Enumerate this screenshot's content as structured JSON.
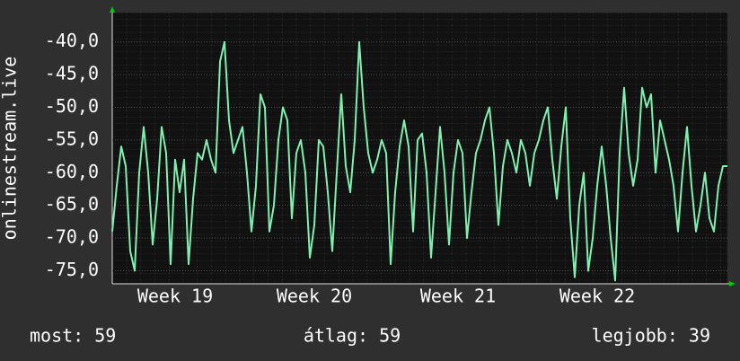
{
  "chart_data": {
    "type": "line",
    "y_label": "onlinestream.live",
    "categories": [
      null,
      null,
      null,
      null,
      null,
      null,
      null,
      null,
      null,
      null,
      null,
      null,
      null,
      null,
      "Week 19",
      null,
      null,
      null,
      null,
      null,
      null,
      null,
      null,
      null,
      null,
      null,
      null,
      null,
      null,
      null,
      null,
      null,
      null,
      null,
      null,
      null,
      null,
      null,
      null,
      null,
      null,
      null,
      null,
      null,
      null,
      "Week 20",
      null,
      null,
      null,
      null,
      null,
      null,
      null,
      null,
      null,
      null,
      null,
      null,
      null,
      null,
      null,
      null,
      null,
      null,
      null,
      null,
      null,
      null,
      null,
      null,
      null,
      null,
      null,
      null,
      null,
      null,
      null,
      "Week 21",
      null,
      null,
      null,
      null,
      null,
      null,
      null,
      null,
      null,
      null,
      null,
      null,
      null,
      null,
      null,
      null,
      null,
      null,
      null,
      null,
      null,
      null,
      null,
      null,
      null,
      null,
      null,
      null,
      null,
      null,
      "Week 22",
      null,
      null,
      null,
      null,
      null,
      null,
      null,
      null,
      null,
      null,
      null,
      null,
      null,
      null,
      null,
      null,
      null,
      null,
      null,
      null,
      null,
      null,
      null,
      null,
      null,
      null,
      null,
      null,
      null
    ],
    "series": [
      {
        "color": "#80f0b0",
        "values": [
          -69,
          -62,
          -56,
          -59,
          -72,
          -75,
          -60,
          -53,
          -60,
          -71,
          -64,
          -53,
          -57,
          -74,
          -58,
          -63,
          -58,
          -74,
          -64,
          -57,
          -58,
          -55,
          -58,
          -60,
          -43,
          -40,
          -52,
          -57,
          -55,
          -53,
          -60,
          -69,
          -62,
          -48,
          -50,
          -69,
          -65,
          -55,
          -50,
          -52,
          -67,
          -57,
          -55,
          -60,
          -73,
          -68,
          -55,
          -56,
          -63,
          -72,
          -60,
          -48,
          -59,
          -63,
          -55,
          -40,
          -50,
          -57,
          -60,
          -58,
          -55,
          -57,
          -74,
          -63,
          -56,
          -52,
          -56,
          -69,
          -55,
          -54,
          -60,
          -73,
          -63,
          -53,
          -60,
          -71,
          -60,
          -55,
          -57,
          -70,
          -63,
          -57,
          -55,
          -52,
          -50,
          -57,
          -68,
          -59,
          -55,
          -57,
          -60,
          -55,
          -57,
          -62,
          -57,
          -55,
          -52,
          -50,
          -58,
          -64,
          -56,
          -50,
          -67,
          -76,
          -65,
          -60,
          -75,
          -70,
          -62,
          -56,
          -62,
          -70,
          -76.5,
          -57,
          -47,
          -57,
          -62,
          -58,
          -47,
          -50,
          -48,
          -60,
          -52,
          -55,
          -58,
          -62,
          -69,
          -60,
          -53,
          -62,
          -69,
          -65,
          -60,
          -67,
          -69,
          -62,
          -59,
          -59
        ]
      }
    ],
    "ylim": [
      -77,
      -35.5
    ],
    "yticks": [
      {
        "value": -40,
        "label": "-40,0"
      },
      {
        "value": -45,
        "label": "-45,0"
      },
      {
        "value": -50,
        "label": "-50,0"
      },
      {
        "value": -55,
        "label": "-55,0"
      },
      {
        "value": -60,
        "label": "-60,0"
      },
      {
        "value": -65,
        "label": "-65,0"
      },
      {
        "value": -70,
        "label": "-70,0"
      },
      {
        "value": -75,
        "label": "-75,0"
      }
    ],
    "grid": true,
    "annotations": [
      "most: 59",
      "átlag: 59",
      "legjobb: 39"
    ]
  }
}
